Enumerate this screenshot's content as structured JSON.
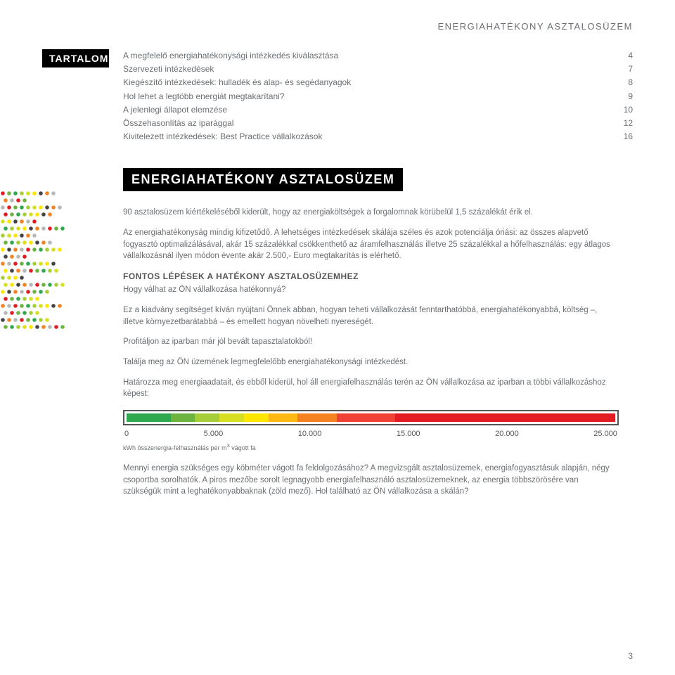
{
  "header": "ENERGIAHATÉKONY ASZTALOSÜZEM",
  "tartalom_label": "TARTALOM",
  "toc": [
    {
      "label": "A megfelelő energiahatékonysági intézkedés kiválasztása",
      "page": "4"
    },
    {
      "label": "Szervezeti intézkedések",
      "page": "7"
    },
    {
      "label": "Kiegészítő intézkedések: hulladék és alap- és segédanyagok",
      "page": "8"
    },
    {
      "label": "Hol lehet a legtöbb energiát megtakarítani?",
      "page": "9"
    },
    {
      "label": "A jelenlegi állapot elemzése",
      "page": "10"
    },
    {
      "label": "Összehasonlítás az iparággal",
      "page": "12"
    },
    {
      "label": "Kivitelezett intézkedések: Best Practice vállalkozások",
      "page": "16"
    }
  ],
  "title": "ENERGIAHATÉKONY ASZTALOSÜZEM",
  "para1": "90 asztalosüzem kiértékeléséből kiderült, hogy az energiaköltségek a forgalomnak körübelül 1,5 százalékát érik el.",
  "para2": "Az energiahatékonyság mindig kifizetődő. A lehetséges intézkedések skálája széles és azok potenciálja óriási: az összes alapvető fogyasztó optimalizálásával, akár 15 százalékkal csökkenthető az áramfelhasználás illetve 25 százalékkal a hőfelhasználás: egy átlagos vállalkozásnál ilyen módon évente akár 2.500,- Euro megtakarítás is elérhető.",
  "section_head": "FONTOS LÉPÉSEK A HATÉKONY ASZTALOSÜZEMHEZ",
  "section_sub": "Hogy válhat az ÖN vállalkozása hatékonnyá?",
  "para3": "Ez a kiadvány segítséget kíván nyújtani Önnek abban, hogyan teheti vállalkozását fenntarthatóbbá, energiahatékonyabbá, költség –, illetve környezetbarátabbá – és emellett hogyan növelheti nyereségét.",
  "para4": "Profitáljon az iparban már jól bevált tapasztalatokból!",
  "para5": "Találja meg az ÖN üzemének legmegfelelőbb energiahatékonysági intézkedést.",
  "para6": "Határozza meg energiaadatait, és ebből kiderül, hol áll energiafelhasználás terén az ÖN vállalkozása az iparban a többi vállalkozáshoz képest:",
  "scale": {
    "xmin": 0,
    "xmax": 25000,
    "tick_step": 5000,
    "ticks": [
      "0",
      "5.000",
      "10.000",
      "15.000",
      "20.000",
      "25.000"
    ],
    "segments": [
      {
        "color": "#2fa84f",
        "width_pct": 9
      },
      {
        "color": "#6db33f",
        "width_pct": 5
      },
      {
        "color": "#a6ce39",
        "width_pct": 5
      },
      {
        "color": "#d7df23",
        "width_pct": 5
      },
      {
        "color": "#ffe600",
        "width_pct": 5
      },
      {
        "color": "#fdb813",
        "width_pct": 6
      },
      {
        "color": "#f58220",
        "width_pct": 8
      },
      {
        "color": "#ef4136",
        "width_pct": 12
      },
      {
        "color": "#e31b23",
        "width_pct": 45
      }
    ],
    "caption_prefix": "kWh összenergia-felhasználás per m",
    "caption_sup": "3",
    "caption_suffix": " vágott fa",
    "border_color": "#555555",
    "tick_fontsize": 11
  },
  "para7": "Mennyi energia szükséges egy köbméter vágott fa feldolgozásához? A megvizsgált asztalosüzemek, energiafogyasztásuk alapján, négy csoportba sorolhatók. A piros mezőbe sorolt legnagyobb energiafelhasználó asztalosüzemeknek, az energia többszörösére van szükségük mint a leghatékonyabbaknak (zöld mező). Hol található az ÖN vállalkozása a skálán?",
  "page_number": "3",
  "dots": {
    "palette": [
      "#e31b23",
      "#f58220",
      "#ffe600",
      "#a6ce39",
      "#6db33f",
      "#b6b8ba",
      "#444444",
      "#d7df23",
      "#2fa84f"
    ]
  },
  "colors": {
    "text": "#6a6f73",
    "heading_bg": "#000000",
    "heading_fg": "#ffffff",
    "body_bg": "#ffffff"
  }
}
